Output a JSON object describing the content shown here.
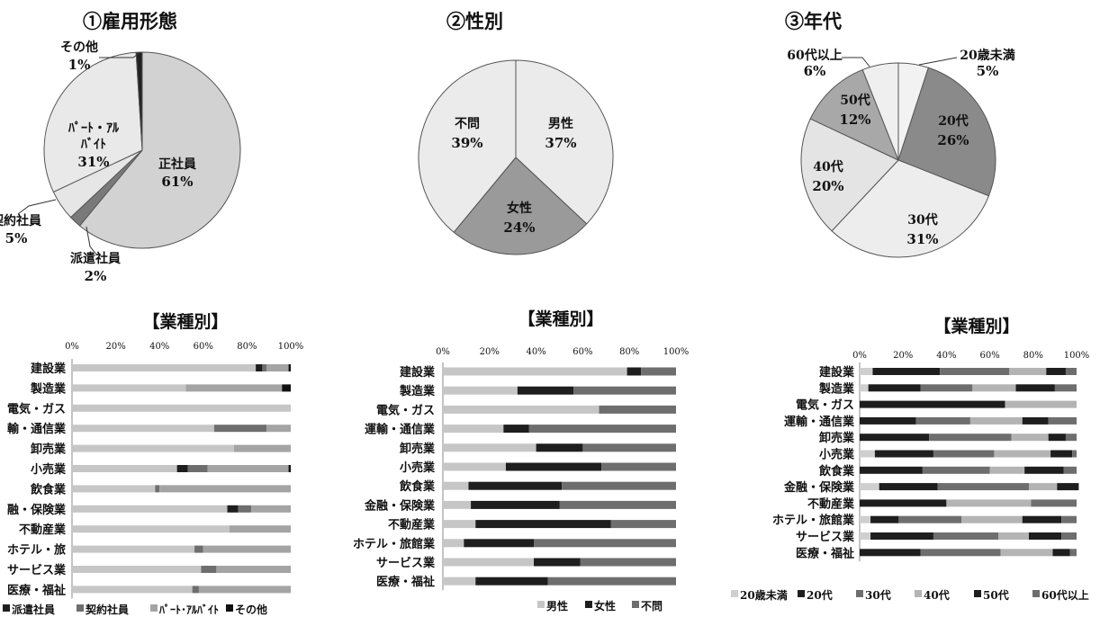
{
  "pies": [
    {
      "title": "①雇用形態",
      "slices": [
        {
          "label": "正社員",
          "value": 61,
          "color": "#d2d2d2"
        },
        {
          "label": "派遣社員",
          "value": 2,
          "color": "#7a7a7a"
        },
        {
          "label": "契約社員",
          "value": 5,
          "color": "#e6e6e6"
        },
        {
          "label": "ﾊﾟｰﾄ・ｱﾙﾊﾞｲﾄ",
          "value": 31,
          "color": "#e9e9e9"
        },
        {
          "label": "その他",
          "value": 1,
          "color": "#222222"
        }
      ],
      "value_labels": [
        "61%",
        "2%",
        "5%",
        "31%",
        "1%"
      ],
      "label_lines": [
        [
          "正社員"
        ],
        [
          "派遣社員"
        ],
        [
          "契約社員"
        ],
        [
          "ﾊﾟｰﾄ・ｱﾙ",
          "ﾊﾞｲﾄ"
        ],
        [
          "その他"
        ]
      ]
    },
    {
      "title": "②性別",
      "slices": [
        {
          "label": "男性",
          "value": 37,
          "color": "#ebebeb"
        },
        {
          "label": "女性",
          "value": 24,
          "color": "#9a9a9a"
        },
        {
          "label": "不問",
          "value": 39,
          "color": "#ebebeb"
        }
      ],
      "value_labels": [
        "37%",
        "24%",
        "39%"
      ],
      "label_lines": [
        [
          "男性"
        ],
        [
          "女性"
        ],
        [
          "不問"
        ]
      ]
    },
    {
      "title": "③年代",
      "slices": [
        {
          "label": "20歳未満",
          "value": 5,
          "color": "#f2f2f2"
        },
        {
          "label": "20代",
          "value": 26,
          "color": "#8a8a8a"
        },
        {
          "label": "30代",
          "value": 31,
          "color": "#ededed"
        },
        {
          "label": "40代",
          "value": 20,
          "color": "#e4e4e4"
        },
        {
          "label": "50代",
          "value": 12,
          "color": "#a8a8a8"
        },
        {
          "label": "60代以上",
          "value": 6,
          "color": "#efefef"
        }
      ],
      "value_labels": [
        "5%",
        "26%",
        "31%",
        "20%",
        "12%",
        "6%"
      ],
      "label_lines": [
        [
          "20歳未満"
        ],
        [
          "20代"
        ],
        [
          "30代"
        ],
        [
          "40代"
        ],
        [
          "50代"
        ],
        [
          "60代以上"
        ]
      ]
    }
  ],
  "bars_title": "【業種別】",
  "axis_ticks": [
    "0%",
    "20%",
    "40%",
    "60%",
    "80%",
    "100%"
  ],
  "chart_data": [
    {
      "type": "pie",
      "title": "①雇用形態",
      "categories": [
        "正社員",
        "派遣社員",
        "契約社員",
        "パート・アルバイト",
        "その他"
      ],
      "values": [
        61,
        2,
        5,
        31,
        1
      ]
    },
    {
      "type": "pie",
      "title": "②性別",
      "categories": [
        "男性",
        "女性",
        "不問"
      ],
      "values": [
        37,
        24,
        39
      ]
    },
    {
      "type": "pie",
      "title": "③年代",
      "categories": [
        "20歳未満",
        "20代",
        "30代",
        "40代",
        "50代",
        "60代以上"
      ],
      "values": [
        5,
        26,
        31,
        20,
        12,
        6
      ]
    },
    {
      "type": "bar",
      "orientation": "horizontal",
      "stacked": "percent",
      "title": "【業種別】",
      "xlim": [
        0,
        100
      ],
      "categories": [
        "建設業",
        "製造業",
        "電気・ガス",
        "運輸・通信業",
        "卸売業",
        "小売業",
        "飲食業",
        "金融・保険業",
        "不動産業",
        "ホテル・旅館業",
        "サービス業",
        "医療・福祉"
      ],
      "category_labels": [
        "建設業",
        "製造業",
        "電気・ガス",
        "輸・通信業",
        "卸売業",
        "小売業",
        "飲食業",
        "融・保険業",
        "不動産業",
        "ホテル・旅",
        "サービス業",
        "医療・福祉"
      ],
      "legend": [
        "■派遣社員",
        "■契約社員",
        "■ﾊﾟｰﾄ･ｱﾙﾊﾞｲﾄ",
        "■その他"
      ],
      "series": [
        {
          "name": "正社員",
          "color": "#c6c6c6",
          "values": [
            84,
            52,
            100,
            65,
            74,
            48,
            38,
            71,
            72,
            56,
            59,
            55
          ]
        },
        {
          "name": "派遣社員",
          "color": "#1e1e1e",
          "values": [
            3,
            0,
            0,
            0,
            0,
            5,
            0,
            5,
            0,
            0,
            0,
            0
          ]
        },
        {
          "name": "契約社員",
          "color": "#6e6e6e",
          "values": [
            2,
            0,
            0,
            24,
            0,
            9,
            2,
            6,
            0,
            4,
            7,
            3
          ]
        },
        {
          "name": "パート・アルバイト",
          "color": "#a4a4a4",
          "values": [
            10,
            44,
            0,
            11,
            26,
            37,
            60,
            18,
            28,
            40,
            34,
            42
          ]
        },
        {
          "name": "その他",
          "color": "#111111",
          "values": [
            1,
            4,
            0,
            0,
            0,
            1,
            0,
            0,
            0,
            0,
            0,
            0
          ]
        }
      ]
    },
    {
      "type": "bar",
      "orientation": "horizontal",
      "stacked": "percent",
      "title": "【業種別】",
      "xlim": [
        0,
        100
      ],
      "categories": [
        "建設業",
        "製造業",
        "電気・ガス",
        "運輸・通信業",
        "卸売業",
        "小売業",
        "飲食業",
        "金融・保険業",
        "不動産業",
        "ホテル・旅館業",
        "サービス業",
        "医療・福祉"
      ],
      "category_labels": [
        "建設業",
        "製造業",
        "電気・ガス",
        "運輸・通信業",
        "卸売業",
        "小売業",
        "飲食業",
        "金融・保険業",
        "不動産業",
        "ホテル・旅館業",
        "サービス業",
        "医療・福祉"
      ],
      "legend": [
        "■男性",
        "■女性",
        "■不問"
      ],
      "series": [
        {
          "name": "男性",
          "color": "#c6c6c6",
          "values": [
            79,
            32,
            67,
            26,
            40,
            27,
            11,
            12,
            14,
            9,
            39,
            14
          ]
        },
        {
          "name": "女性",
          "color": "#1e1e1e",
          "values": [
            6,
            24,
            0,
            11,
            20,
            41,
            40,
            38,
            58,
            30,
            20,
            31
          ]
        },
        {
          "name": "不問",
          "color": "#6e6e6e",
          "values": [
            15,
            44,
            33,
            63,
            40,
            32,
            49,
            50,
            28,
            61,
            41,
            55
          ]
        }
      ]
    },
    {
      "type": "bar",
      "orientation": "horizontal",
      "stacked": "percent",
      "title": "【業種別】",
      "xlim": [
        0,
        100
      ],
      "categories": [
        "建設業",
        "製造業",
        "電気・ガス",
        "運輸・通信業",
        "卸売業",
        "小売業",
        "飲食業",
        "金融・保険業",
        "不動産業",
        "ホテル・旅館業",
        "サービス業",
        "医療・福祉"
      ],
      "category_labels": [
        "建設業",
        "製造業",
        "電気・ガス",
        "運輸・通信業",
        "卸売業",
        "小売業",
        "飲食業",
        "金融・保険業",
        "不動産業",
        "ホテル・旅館業",
        "サービス業",
        "医療・福祉"
      ],
      "legend": [
        "■20歳未満",
        "■20代",
        "■30代",
        "■40代",
        "■50代",
        "■60代以上"
      ],
      "series": [
        {
          "name": "20歳未満",
          "color": "#cfcfcf",
          "values": [
            6,
            4,
            0,
            0,
            0,
            7,
            0,
            9,
            0,
            5,
            5,
            0
          ]
        },
        {
          "name": "20代",
          "color": "#1e1e1e",
          "values": [
            31,
            24,
            67,
            26,
            32,
            27,
            29,
            27,
            40,
            13,
            29,
            28
          ]
        },
        {
          "name": "30代",
          "color": "#6e6e6e",
          "values": [
            32,
            24,
            0,
            25,
            38,
            28,
            31,
            42,
            0,
            29,
            30,
            37
          ]
        },
        {
          "name": "40代",
          "color": "#b4b4b4",
          "values": [
            17,
            20,
            33,
            24,
            17,
            26,
            16,
            13,
            39,
            28,
            14,
            24
          ]
        },
        {
          "name": "50代",
          "color": "#1e1e1e",
          "values": [
            9,
            18,
            0,
            12,
            8,
            10,
            18,
            10,
            0,
            18,
            15,
            8
          ]
        },
        {
          "name": "60代以上",
          "color": "#6e6e6e",
          "values": [
            5,
            10,
            0,
            13,
            5,
            2,
            6,
            0,
            21,
            7,
            7,
            3
          ]
        }
      ]
    }
  ]
}
